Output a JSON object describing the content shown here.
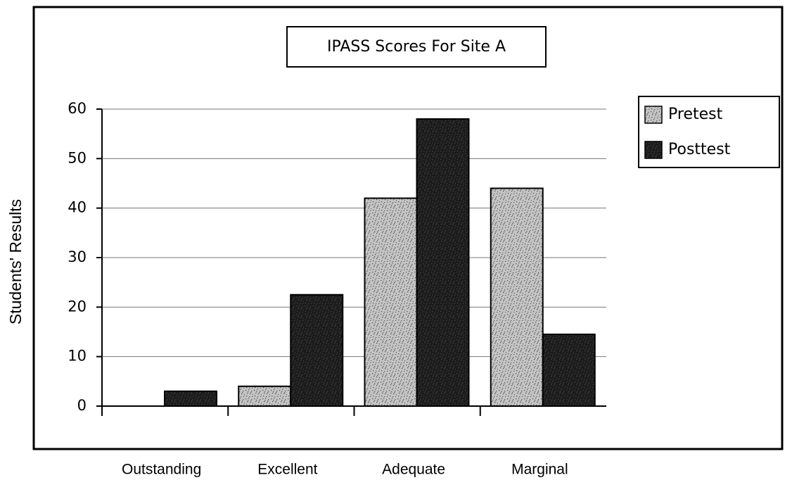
{
  "chart_data": {
    "type": "bar",
    "title": "IPASS Scores For Site A",
    "y_label": "Students' Results",
    "categories": [
      "Outstanding",
      "Excellent",
      "Adequate",
      "Marginal"
    ],
    "series": [
      {
        "name": "Pretest",
        "color": "#c4c4c4",
        "values": [
          0,
          4,
          42,
          44
        ]
      },
      {
        "name": "Posttest",
        "color": "#1c1c1c",
        "values": [
          3,
          22.5,
          58,
          14.5
        ]
      }
    ],
    "ylim": [
      0,
      60
    ],
    "yticks": [
      0,
      10,
      20,
      30,
      40,
      50,
      60
    ],
    "grid": true,
    "legend": "right"
  }
}
